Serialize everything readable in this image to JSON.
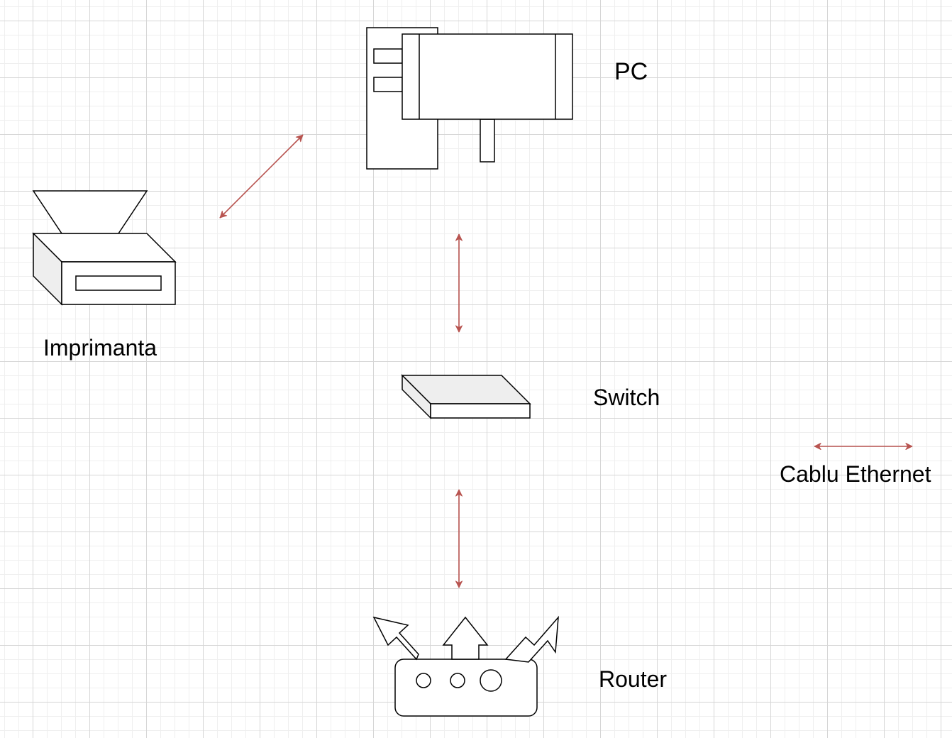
{
  "nodes": {
    "pc": {
      "label": "PC",
      "icon": "pc-icon"
    },
    "printer": {
      "label": "Imprimanta",
      "icon": "printer-icon"
    },
    "switch": {
      "label": "Switch",
      "icon": "switch-icon"
    },
    "router": {
      "label": "Router",
      "icon": "router-icon"
    }
  },
  "legend": {
    "label": "Cablu Ethernet",
    "icon": "double-arrow-icon"
  },
  "colors": {
    "connector": "#b85450",
    "grid_major": "#d6d6d6",
    "grid_minor": "#efefef",
    "stroke": "#000000",
    "shade": "#eeeeee"
  }
}
